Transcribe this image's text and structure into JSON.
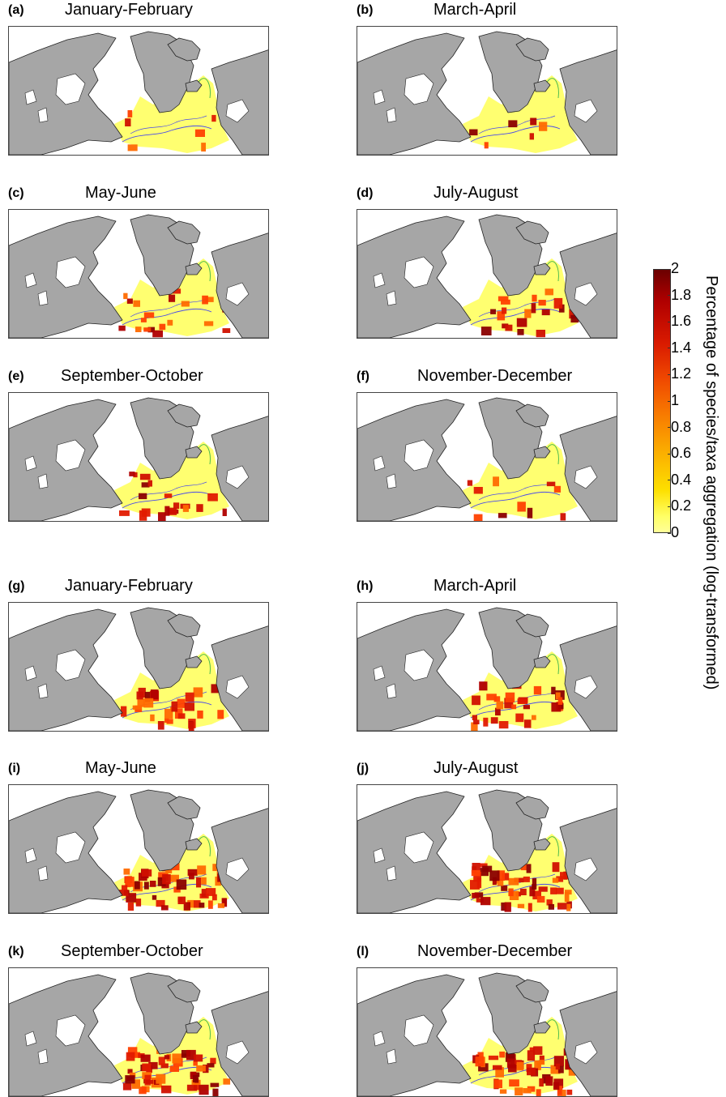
{
  "panels": [
    {
      "label": "(a)",
      "title": "January-February",
      "intensity": "low"
    },
    {
      "label": "(b)",
      "title": "March-April",
      "intensity": "low"
    },
    {
      "label": "(c)",
      "title": "May-June",
      "intensity": "medium"
    },
    {
      "label": "(d)",
      "title": "July-August",
      "intensity": "medium"
    },
    {
      "label": "(e)",
      "title": "September-October",
      "intensity": "medium"
    },
    {
      "label": "(f)",
      "title": "November-December",
      "intensity": "low-medium"
    },
    {
      "label": "(g)",
      "title": "January-February",
      "intensity": "medium-high"
    },
    {
      "label": "(h)",
      "title": "March-April",
      "intensity": "medium-high"
    },
    {
      "label": "(i)",
      "title": "May-June",
      "intensity": "high"
    },
    {
      "label": "(j)",
      "title": "July-August",
      "intensity": "high"
    },
    {
      "label": "(k)",
      "title": "September-October",
      "intensity": "high"
    },
    {
      "label": "(l)",
      "title": "November-December",
      "intensity": "high"
    }
  ],
  "colorbar": {
    "title": "Percentage of species/taxa aggregation (log-transformed)",
    "ticks": [
      "2",
      "1.8",
      "1.6",
      "1.4",
      "1.2",
      "1",
      "0.8",
      "0.6",
      "0.4",
      "0.2",
      "0"
    ],
    "range": [
      0,
      2
    ],
    "colors": {
      "low": "#ffff66",
      "mid": "#f87a00",
      "high": "#6b0000"
    }
  },
  "map_colors": {
    "land": "#a6a6a6",
    "ocean": "#ffffff",
    "coverage": "#ffff70",
    "contour_blue": "#4a4ae8",
    "contour_green": "#3cb44b"
  }
}
